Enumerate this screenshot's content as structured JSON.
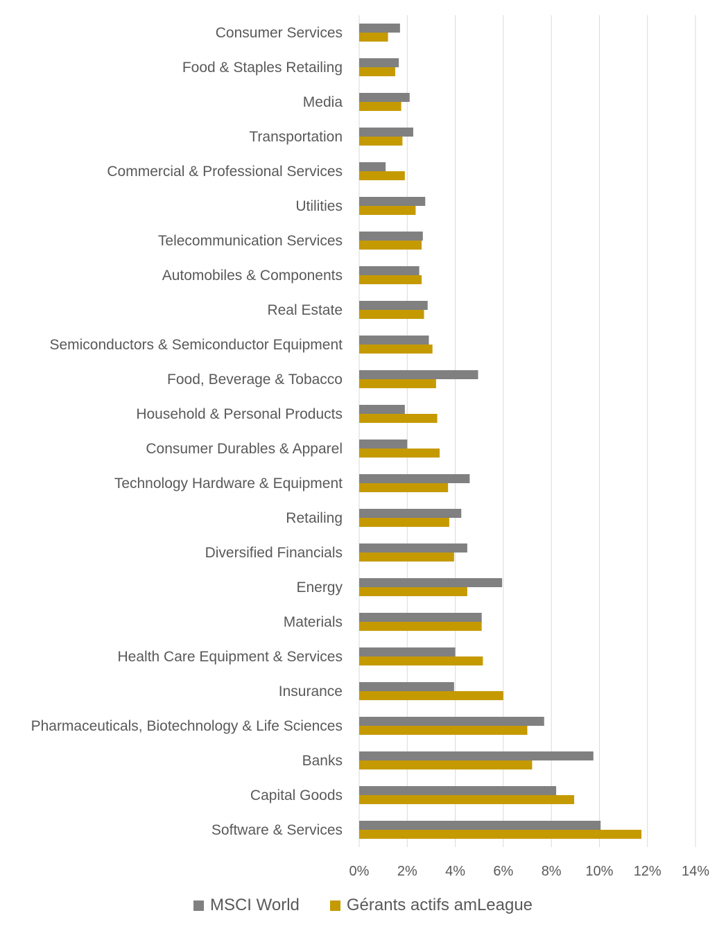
{
  "chart_data": {
    "type": "bar",
    "orientation": "horizontal",
    "title": "",
    "xlabel": "",
    "ylabel": "",
    "xlim": [
      0,
      14
    ],
    "x_ticks": [
      "0%",
      "2%",
      "4%",
      "6%",
      "8%",
      "10%",
      "12%",
      "14%"
    ],
    "grid": "vertical",
    "legend_position": "bottom",
    "categories": [
      "Consumer Services",
      "Food & Staples Retailing",
      "Media",
      "Transportation",
      "Commercial & Professional Services",
      "Utilities",
      "Telecommunication Services",
      "Automobiles & Components",
      "Real Estate",
      "Semiconductors & Semiconductor Equipment",
      "Food, Beverage & Tobacco",
      "Household & Personal Products",
      "Consumer Durables & Apparel",
      "Technology Hardware & Equipment",
      "Retailing",
      "Diversified Financials",
      "Energy",
      "Materials",
      "Health Care Equipment & Services",
      "Insurance",
      "Pharmaceuticals, Biotechnology & Life Sciences",
      "Banks",
      "Capital Goods",
      "Software & Services"
    ],
    "series": [
      {
        "name": "MSCI World",
        "color": "#808080",
        "values": [
          1.7,
          1.65,
          2.1,
          2.25,
          1.1,
          2.75,
          2.65,
          2.5,
          2.85,
          2.9,
          4.95,
          1.9,
          2.0,
          4.6,
          4.25,
          4.5,
          5.95,
          5.1,
          4.0,
          3.95,
          7.7,
          9.75,
          8.2,
          10.05
        ]
      },
      {
        "name": "Gérants actifs amLeague",
        "color": "#C59A00",
        "values": [
          1.2,
          1.5,
          1.75,
          1.8,
          1.9,
          2.35,
          2.6,
          2.6,
          2.7,
          3.05,
          3.2,
          3.25,
          3.35,
          3.7,
          3.75,
          3.95,
          4.5,
          5.1,
          5.15,
          6.0,
          7.0,
          7.2,
          8.95,
          11.75
        ]
      }
    ]
  }
}
